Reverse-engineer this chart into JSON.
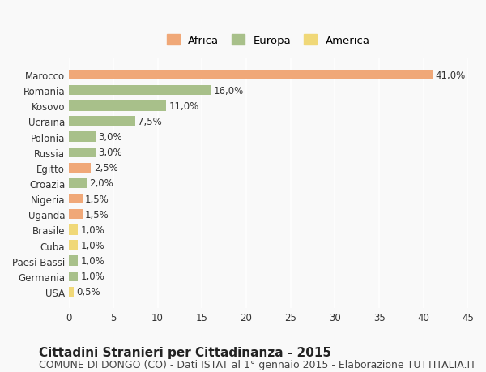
{
  "countries": [
    "Marocco",
    "Romania",
    "Kosovo",
    "Ucraina",
    "Polonia",
    "Russia",
    "Egitto",
    "Croazia",
    "Nigeria",
    "Uganda",
    "Brasile",
    "Cuba",
    "Paesi Bassi",
    "Germania",
    "USA"
  ],
  "values": [
    41.0,
    16.0,
    11.0,
    7.5,
    3.0,
    3.0,
    2.5,
    2.0,
    1.5,
    1.5,
    1.0,
    1.0,
    1.0,
    1.0,
    0.5
  ],
  "labels": [
    "41,0%",
    "16,0%",
    "11,0%",
    "7,5%",
    "3,0%",
    "3,0%",
    "2,5%",
    "2,0%",
    "1,5%",
    "1,5%",
    "1,0%",
    "1,0%",
    "1,0%",
    "1,0%",
    "0,5%"
  ],
  "continents": [
    "Africa",
    "Europa",
    "Europa",
    "Europa",
    "Europa",
    "Europa",
    "Africa",
    "Europa",
    "Africa",
    "Africa",
    "America",
    "America",
    "Europa",
    "Europa",
    "America"
  ],
  "colors": {
    "Africa": "#F0A878",
    "Europa": "#A8C08A",
    "America": "#F0D878"
  },
  "legend_labels": [
    "Africa",
    "Europa",
    "America"
  ],
  "legend_colors": [
    "#F0A878",
    "#A8C08A",
    "#F0D878"
  ],
  "title": "Cittadini Stranieri per Cittadinanza - 2015",
  "subtitle": "COMUNE DI DONGO (CO) - Dati ISTAT al 1° gennaio 2015 - Elaborazione TUTTITALIA.IT",
  "xlim": [
    0,
    45
  ],
  "xticks": [
    0,
    5,
    10,
    15,
    20,
    25,
    30,
    35,
    40,
    45
  ],
  "background_color": "#f9f9f9",
  "bar_background": "#f0f0f0",
  "grid_color": "#ffffff",
  "title_fontsize": 11,
  "subtitle_fontsize": 9,
  "label_fontsize": 8.5,
  "tick_fontsize": 8.5,
  "legend_fontsize": 9.5
}
